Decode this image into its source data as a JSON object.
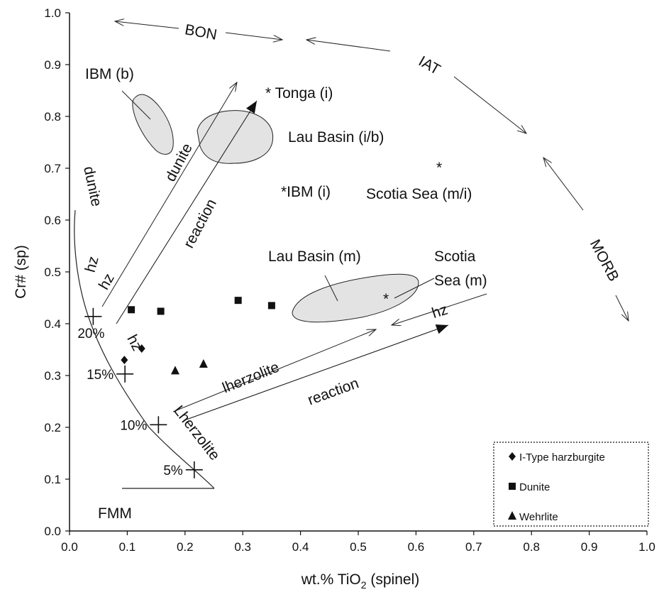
{
  "chart_data": {
    "type": "scatter",
    "xlabel_main": "wt.% TiO",
    "xlabel_sub": "2",
    "xlabel_tail": " (spinel)",
    "ylabel": "Cr# (sp)",
    "xlim": [
      0.0,
      1.0
    ],
    "ylim": [
      0.0,
      1.0
    ],
    "x_ticks": [
      "0.0",
      "0.1",
      "0.2",
      "0.3",
      "0.4",
      "0.5",
      "0.6",
      "0.7",
      "0.8",
      "0.9",
      "1.0"
    ],
    "y_ticks": [
      "0.0",
      "0.1",
      "0.2",
      "0.3",
      "0.4",
      "0.5",
      "0.6",
      "0.7",
      "0.8",
      "0.9",
      "1.0"
    ],
    "grid": false,
    "legend_position": "bottom-right",
    "series": [
      {
        "name": "I-Type harzburgite",
        "marker": "diamond",
        "points": [
          [
            0.095,
            0.33
          ],
          [
            0.125,
            0.352
          ]
        ]
      },
      {
        "name": "Dunite",
        "marker": "square",
        "points": [
          [
            0.107,
            0.427
          ],
          [
            0.158,
            0.424
          ],
          [
            0.292,
            0.445
          ],
          [
            0.35,
            0.435
          ]
        ]
      },
      {
        "name": "Wehrlite",
        "marker": "triangle",
        "points": [
          [
            0.183,
            0.309
          ],
          [
            0.232,
            0.322
          ]
        ]
      }
    ],
    "melting_curve": {
      "ticks": [
        {
          "label": "5%",
          "x": 0.216,
          "y": 0.118
        },
        {
          "label": "10%",
          "x": 0.154,
          "y": 0.205
        },
        {
          "label": "15%",
          "x": 0.096,
          "y": 0.303
        },
        {
          "label": "20%",
          "x": 0.041,
          "y": 0.414
        }
      ],
      "start_label": "FMM"
    },
    "annotations": {
      "bon": "BON",
      "iat": "IAT",
      "morb": "MORB",
      "ibm_b": "IBM (b)",
      "tonga_i": "* Tonga (i)",
      "lau_basin_ib": "Lau Basin (i/b)",
      "ibm_i": "*IBM (i)",
      "scotia_sea_mi": "Scotia Sea (m/i)",
      "scotia_star": "*",
      "lau_basin_m": "Lau Basin (m)",
      "scotia_sea_m_line1": "Scotia",
      "scotia_sea_m_line2": "Sea (m)",
      "scotia_m_star": "*",
      "dunite_left": "dunite",
      "dunite_arrow": "dunite",
      "hz_left": "hz",
      "hz_arrow": "hz",
      "hz_lower": "hz",
      "hz_right": "hz",
      "reaction_upper": "reaction",
      "reaction_lower": "reaction",
      "lherzolite_arrow": "lherzolite",
      "lherzolite_curve": "Lherzolite"
    }
  }
}
